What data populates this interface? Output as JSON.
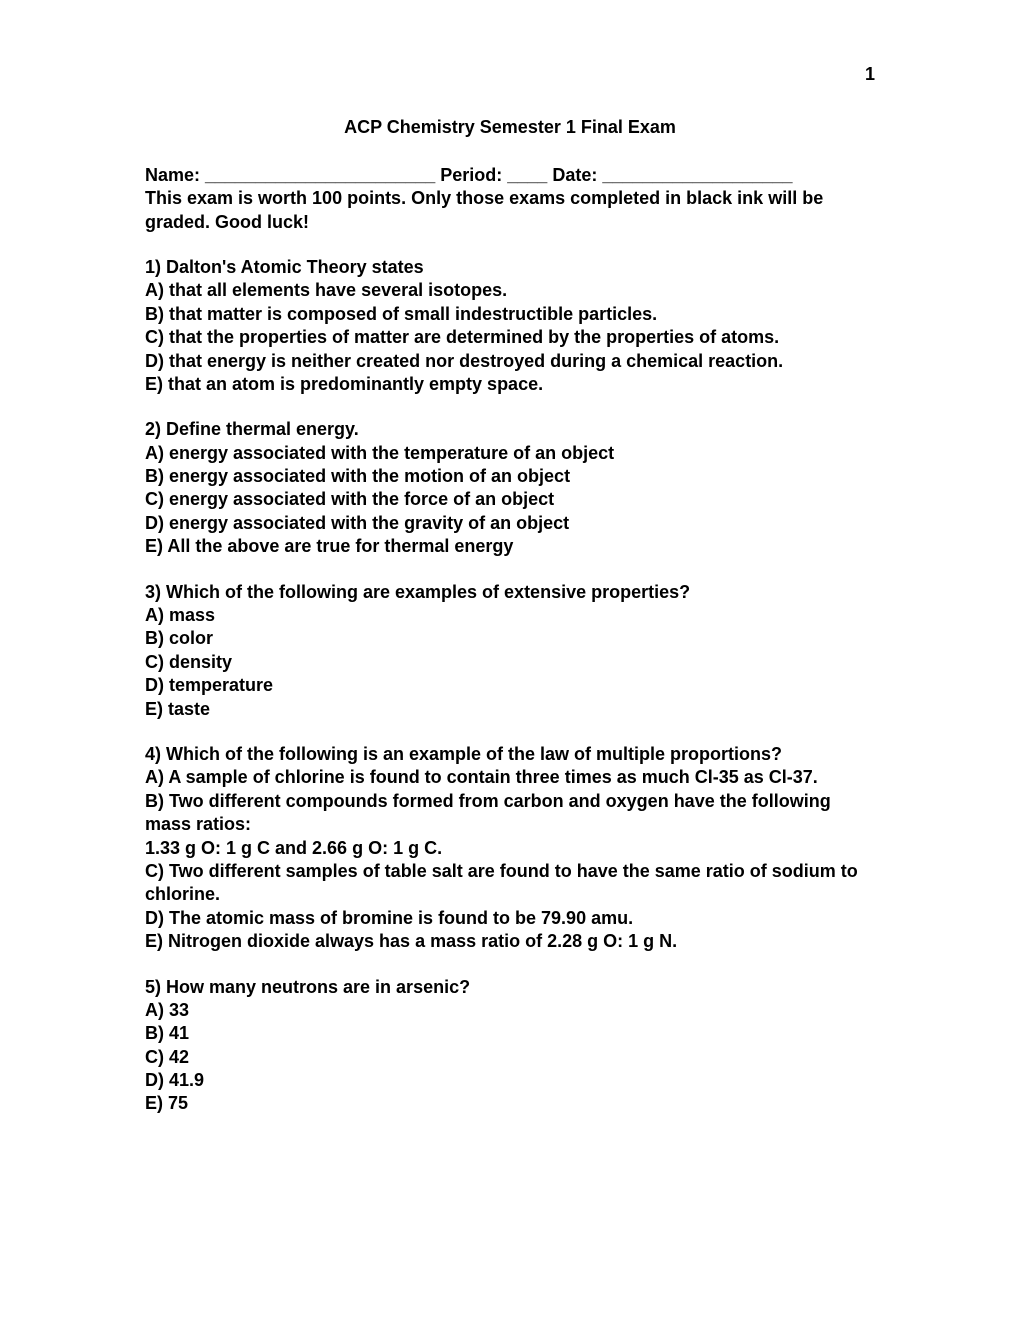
{
  "page_number": "1",
  "title": "ACP Chemistry Semester 1 Final Exam",
  "header_line": "Name: _______________________  Period: ____  Date: ___________________",
  "instructions": "This exam is worth 100 points.  Only those exams completed in black ink will be graded.  Good luck!",
  "questions": [
    {
      "prompt": "1) Dalton's Atomic Theory states",
      "options": [
        "A) that all elements have several isotopes.",
        "B) that matter is composed of small indestructible particles.",
        "C) that the properties of matter are determined by the properties of atoms.",
        "D) that energy is neither created nor destroyed during a chemical reaction.",
        "E) that an atom is predominantly empty space."
      ]
    },
    {
      "prompt": "2) Define thermal energy.",
      "options": [
        "A) energy associated with the temperature of an object",
        "B) energy associated with the motion of an object",
        "C) energy associated with the force of an object",
        "D) energy associated with the gravity of an object",
        "E) All the above are true for thermal energy"
      ]
    },
    {
      "prompt": "3) Which of the following are examples of extensive properties?",
      "options": [
        "A) mass",
        "B) color",
        "C) density",
        "D) temperature",
        "E) taste"
      ]
    },
    {
      "prompt": "4) Which of the following is an example of the law of multiple proportions?",
      "options": [
        "A) A sample of chlorine is found to contain three times as much Cl-35 as Cl-37.",
        "B) Two different compounds formed from carbon and oxygen have the following mass ratios:\n1.33 g O:  1 g C and 2.66 g O:  1 g C.",
        "C) Two different samples of table salt are found to have the same ratio of sodium to chlorine.",
        "D) The atomic mass of bromine is found to be 79.90 amu.",
        "E) Nitrogen dioxide always has a mass ratio of 2.28 g O:  1 g N."
      ]
    },
    {
      "prompt": "5) How many neutrons are in arsenic?",
      "options": [
        "A) 33",
        "B) 41",
        "C) 42",
        "D) 41.9",
        "E) 75"
      ]
    }
  ]
}
